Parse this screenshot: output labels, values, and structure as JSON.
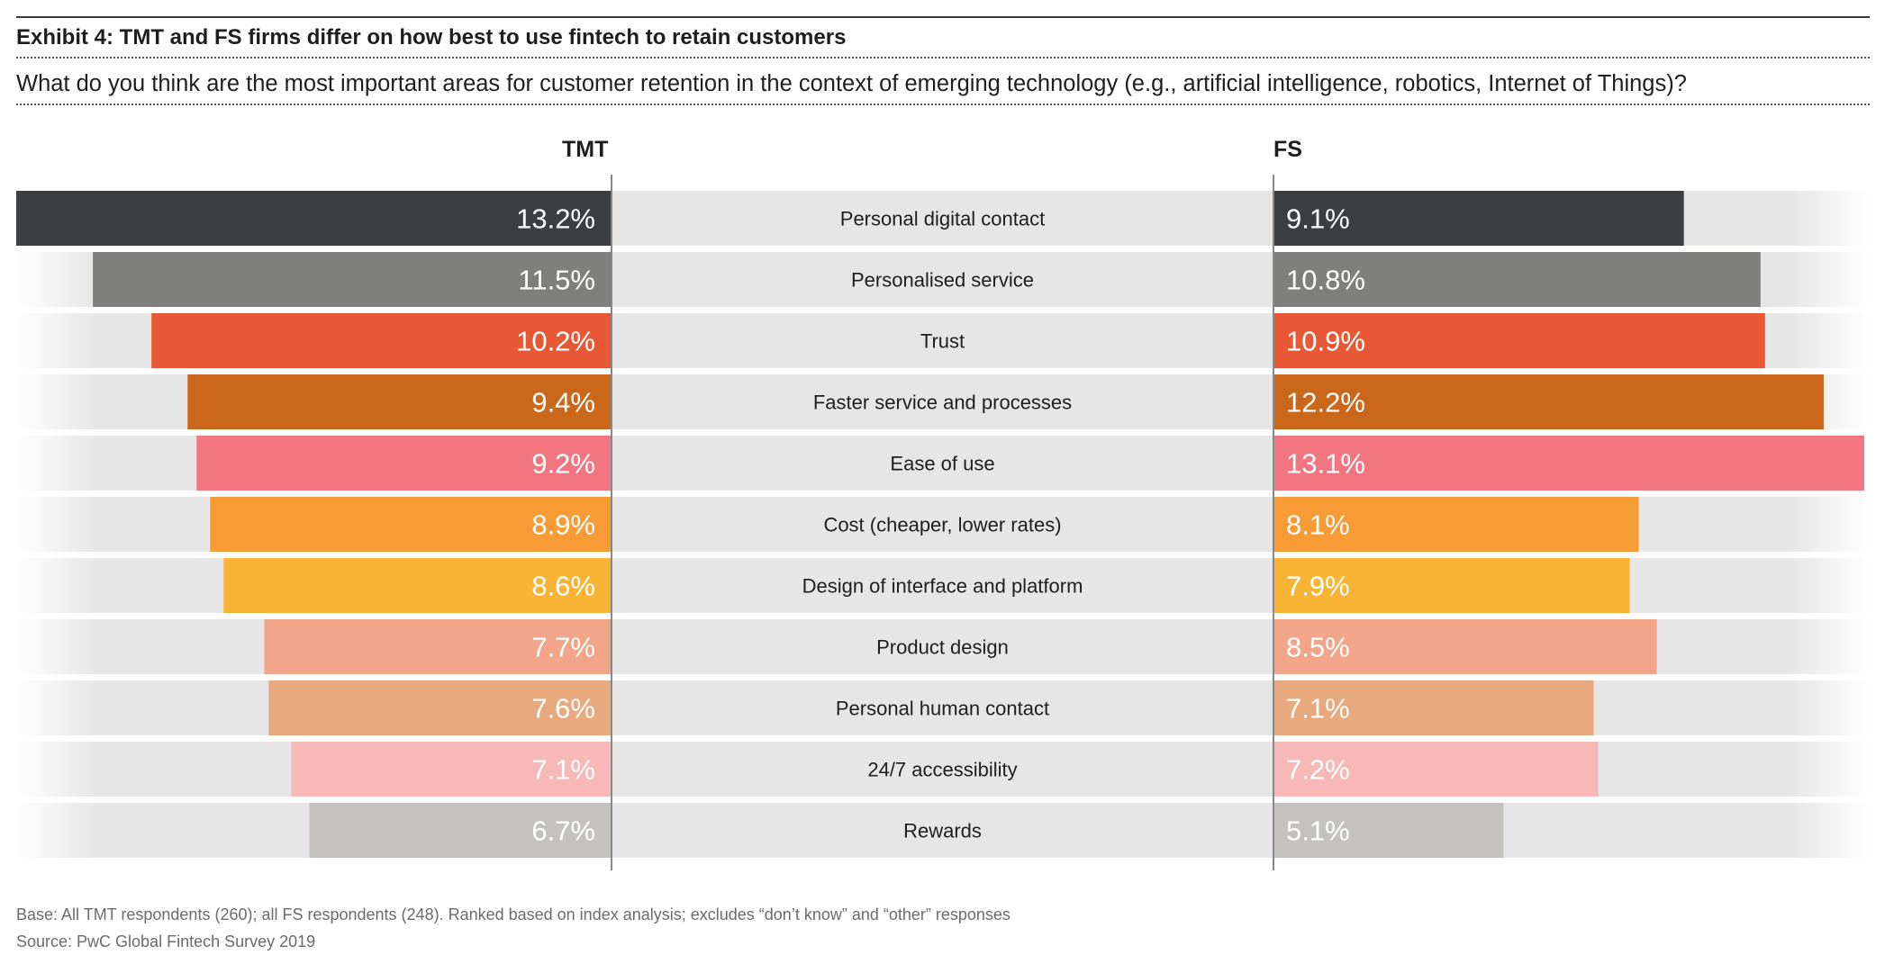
{
  "header": {
    "title": "Exhibit 4: TMT and FS firms differ on how best to use fintech to retain customers",
    "question": "What do you think are the most important areas for customer retention in the context of emerging technology (e.g., artificial intelligence, robotics, Internet of Things)?"
  },
  "chart_data": {
    "type": "bar",
    "title": "Exhibit 4: TMT and FS firms differ on how best to use fintech to retain customers",
    "xlabel": "",
    "ylabel": "",
    "unit": "%",
    "categories": [
      "Personal digital contact",
      "Personalised service",
      "Trust",
      "Faster service and processes",
      "Ease of use",
      "Cost (cheaper, lower rates)",
      "Design of interface and platform",
      "Product design",
      "Personal human contact",
      "24/7 accessibility",
      "Rewards"
    ],
    "series": [
      {
        "name": "TMT",
        "values": [
          13.2,
          11.5,
          10.2,
          9.4,
          9.2,
          8.9,
          8.6,
          7.7,
          7.6,
          7.1,
          6.7
        ]
      },
      {
        "name": "FS",
        "values": [
          9.1,
          10.8,
          10.9,
          12.2,
          13.1,
          8.1,
          7.9,
          8.5,
          7.1,
          7.2,
          5.1
        ]
      }
    ],
    "value_labels": {
      "TMT": [
        "13.2%",
        "11.5%",
        "10.2%",
        "9.4%",
        "9.2%",
        "8.9%",
        "8.6%",
        "7.7%",
        "7.6%",
        "7.1%",
        "6.7%"
      ],
      "FS": [
        "9.1%",
        "10.8%",
        "10.9%",
        "12.2%",
        "13.1%",
        "8.1%",
        "7.9%",
        "8.5%",
        "7.1%",
        "7.2%",
        "5.1%"
      ]
    },
    "colors": [
      "#3c3f42",
      "#7f7f7e",
      "#e95834",
      "#cb671a",
      "#f27680",
      "#f79b34",
      "#fab435",
      "#f2a588",
      "#e7a97d",
      "#f8b8b8",
      "#c3c2bf"
    ],
    "row_background": "#e6e6e6",
    "label_color": "#ffffff",
    "divider_color": "#888888"
  },
  "footer": {
    "base": "Base: All TMT respondents (260); all FS respondents (248). Ranked based on index analysis; excludes “don’t know” and “other” responses",
    "source": "Source: PwC Global Fintech Survey 2019"
  }
}
